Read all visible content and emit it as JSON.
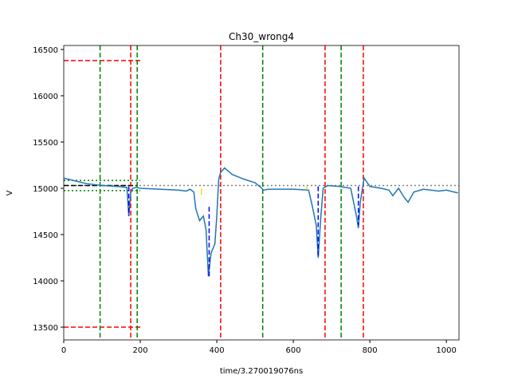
{
  "chart_data": {
    "type": "line",
    "title": "Ch30_wrong4",
    "xlabel": "time/3.270019076ns",
    "ylabel": "V",
    "xlim": [
      0,
      1033
    ],
    "ylim": [
      13362,
      16543
    ],
    "xticks": [
      0,
      200,
      400,
      600,
      800,
      1000
    ],
    "yticks": [
      13500,
      14000,
      14500,
      15000,
      15500,
      16000,
      16500
    ],
    "series": [
      {
        "color": "#1f77b4",
        "x": [
          0,
          30,
          60,
          100,
          140,
          165,
          170,
          175,
          180,
          190,
          200,
          250,
          300,
          320,
          330,
          340,
          345,
          355,
          365,
          372,
          378,
          385,
          395,
          400,
          405,
          410,
          420,
          440,
          470,
          500,
          515,
          522,
          535,
          560,
          600,
          640,
          650,
          660,
          665,
          672,
          678,
          690,
          720,
          750,
          765,
          770,
          775,
          785,
          800,
          830,
          850,
          860,
          875,
          890,
          900,
          915,
          940,
          980,
          1000,
          1020,
          1030
        ],
        "values": [
          15110,
          15080,
          15050,
          15030,
          15020,
          15010,
          14700,
          14950,
          15000,
          15010,
          15000,
          14990,
          14980,
          14970,
          14990,
          14960,
          14780,
          14650,
          14700,
          14550,
          14050,
          14300,
          14400,
          14700,
          15100,
          15170,
          15220,
          15150,
          15100,
          15060,
          15010,
          14980,
          14990,
          14990,
          14990,
          14980,
          14800,
          14600,
          14250,
          14700,
          15000,
          15030,
          15020,
          15000,
          14700,
          14570,
          14850,
          15110,
          15020,
          15000,
          14980,
          14920,
          15000,
          14900,
          14850,
          14960,
          14990,
          14970,
          14980,
          14960,
          14950
        ]
      }
    ],
    "vlines": [
      {
        "x": 95,
        "color": "#008000",
        "dash": "dashed"
      },
      {
        "x": 192,
        "color": "#008000",
        "dash": "dashed"
      },
      {
        "x": 520,
        "color": "#008000",
        "dash": "dashed"
      },
      {
        "x": 725,
        "color": "#008000",
        "dash": "dashed"
      },
      {
        "x": 175,
        "color": "#ff0000",
        "dash": "dashed"
      },
      {
        "x": 410,
        "color": "#ff0000",
        "dash": "dashed"
      },
      {
        "x": 683,
        "color": "#ff0000",
        "dash": "dashed"
      },
      {
        "x": 783,
        "color": "#ff0000",
        "dash": "dashed"
      }
    ],
    "hlines": [
      {
        "y": 16380,
        "xmin": 0,
        "xmax": 200,
        "color": "#ff0000",
        "dash": "dashed"
      },
      {
        "y": 13500,
        "xmin": 0,
        "xmax": 200,
        "color": "#ff0000",
        "dash": "dashed"
      },
      {
        "y": 15085,
        "xmin": 0,
        "xmax": 200,
        "color": "#008000",
        "dash": "dotted"
      },
      {
        "y": 14975,
        "xmin": 0,
        "xmax": 200,
        "color": "#008000",
        "dash": "dotted"
      },
      {
        "y": 15030,
        "xmin": 0,
        "xmax": 1033,
        "color": "#808080",
        "dash": "dotted"
      },
      {
        "y": 15030,
        "xmin": 0,
        "xmax": 190,
        "color": "#000000",
        "dash": "dashed"
      }
    ],
    "segments": [
      {
        "x": 170,
        "y0": 15020,
        "y1": 14700,
        "color": "#0000ff",
        "dash": "dashed"
      },
      {
        "x": 380,
        "y0": 14800,
        "y1": 14050,
        "color": "#0000ff",
        "dash": "dashed"
      },
      {
        "x": 665,
        "y0": 15020,
        "y1": 14250,
        "color": "#0000ff",
        "dash": "dashed"
      },
      {
        "x": 770,
        "y0": 15020,
        "y1": 14600,
        "color": "#0000ff",
        "dash": "dashed"
      },
      {
        "x": 360,
        "y0": 14930,
        "y1": 15000,
        "color": "#ffd700",
        "dash": "solid"
      },
      {
        "x": 635,
        "y0": 14990,
        "y1": 15020,
        "color": "#ffd700",
        "dash": "solid"
      }
    ]
  }
}
